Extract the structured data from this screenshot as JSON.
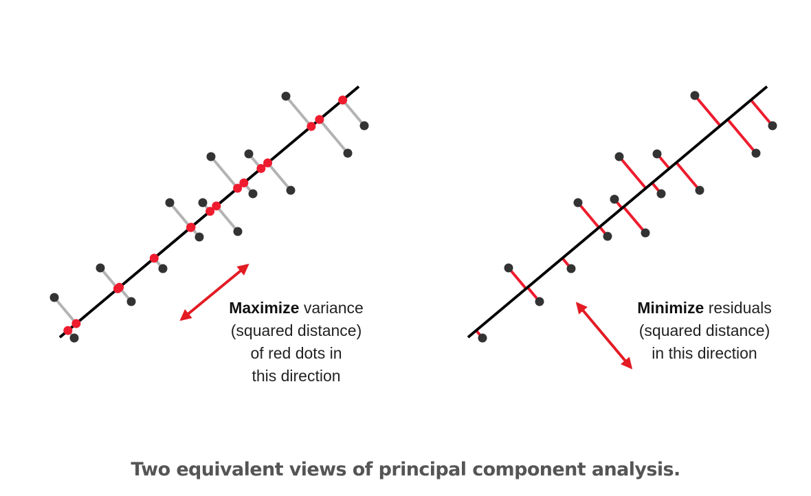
{
  "colors": {
    "point": "#333333",
    "projection": "#ee1c2e",
    "axis_line": "#000000",
    "left_connector": "#b3b3b3",
    "arrow": "#e31b23"
  },
  "panels": {
    "left": {
      "label_bold": "Maximize",
      "label_line1_rest": "variance",
      "label_line2": "(squared distance)",
      "label_line3": "of red dots in",
      "label_line4": "this direction"
    },
    "right": {
      "label_bold": "Minimize",
      "label_line1_rest": "residuals",
      "label_line2": "(squared distance)",
      "label_line3": "in this direction"
    }
  },
  "caption": "Two equivalent views of principal component analysis."
}
